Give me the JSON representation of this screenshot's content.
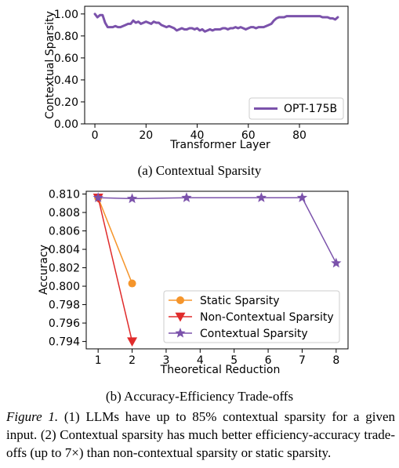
{
  "chart_data": [
    {
      "type": "line",
      "title": "",
      "xlabel": "Transformer Layer",
      "ylabel": "Contextual Sparsity",
      "xlim": [
        -4,
        99
      ],
      "ylim": [
        0,
        1.07
      ],
      "xticks": [
        0,
        20,
        40,
        60,
        80
      ],
      "yticks": [
        0.0,
        0.2,
        0.4,
        0.6,
        0.8,
        1.0
      ],
      "xtick_labels": [
        "0",
        "20",
        "40",
        "60",
        "80"
      ],
      "ytick_labels": [
        "0.00",
        "0.20",
        "0.40",
        "0.60",
        "0.80",
        "1.00"
      ],
      "grid": false,
      "legend_position": "lower-right",
      "series": [
        {
          "name": "OPT-175B",
          "color": "#7b52ab",
          "x": [
            0,
            1,
            2,
            3,
            4,
            5,
            6,
            7,
            8,
            9,
            10,
            11,
            12,
            13,
            14,
            15,
            16,
            17,
            18,
            19,
            20,
            21,
            22,
            23,
            24,
            25,
            26,
            27,
            28,
            29,
            30,
            31,
            32,
            33,
            34,
            35,
            36,
            37,
            38,
            39,
            40,
            41,
            42,
            43,
            44,
            45,
            46,
            47,
            48,
            49,
            50,
            51,
            52,
            53,
            54,
            55,
            56,
            57,
            58,
            59,
            60,
            61,
            62,
            63,
            64,
            65,
            66,
            67,
            68,
            69,
            70,
            71,
            72,
            73,
            74,
            75,
            76,
            77,
            78,
            79,
            80,
            81,
            82,
            83,
            84,
            85,
            86,
            87,
            88,
            89,
            90,
            91,
            92,
            93,
            94,
            95
          ],
          "y": [
            1.0,
            0.97,
            0.99,
            0.99,
            0.92,
            0.88,
            0.88,
            0.88,
            0.89,
            0.88,
            0.88,
            0.89,
            0.9,
            0.91,
            0.91,
            0.94,
            0.92,
            0.93,
            0.91,
            0.92,
            0.93,
            0.92,
            0.91,
            0.93,
            0.92,
            0.92,
            0.9,
            0.89,
            0.88,
            0.89,
            0.88,
            0.87,
            0.85,
            0.86,
            0.87,
            0.86,
            0.86,
            0.87,
            0.87,
            0.86,
            0.87,
            0.85,
            0.86,
            0.84,
            0.85,
            0.86,
            0.85,
            0.86,
            0.86,
            0.86,
            0.87,
            0.87,
            0.86,
            0.87,
            0.87,
            0.88,
            0.87,
            0.88,
            0.87,
            0.86,
            0.87,
            0.88,
            0.88,
            0.87,
            0.88,
            0.88,
            0.88,
            0.89,
            0.9,
            0.91,
            0.94,
            0.96,
            0.97,
            0.97,
            0.97,
            0.98,
            0.98,
            0.98,
            0.98,
            0.98,
            0.98,
            0.98,
            0.98,
            0.98,
            0.98,
            0.98,
            0.98,
            0.98,
            0.98,
            0.97,
            0.97,
            0.97,
            0.96,
            0.96,
            0.95,
            0.97
          ]
        }
      ]
    },
    {
      "type": "line",
      "title": "",
      "xlabel": "Theoretical Reduction",
      "ylabel": "Accuracy",
      "xlim": [
        0.65,
        8.35
      ],
      "ylim": [
        0.7932,
        0.8103
      ],
      "xticks": [
        1,
        2,
        3,
        4,
        5,
        6,
        7,
        8
      ],
      "yticks": [
        0.794,
        0.796,
        0.798,
        0.8,
        0.802,
        0.804,
        0.806,
        0.808,
        0.81
      ],
      "xtick_labels": [
        "1",
        "2",
        "3",
        "4",
        "5",
        "6",
        "7",
        "8"
      ],
      "ytick_labels": [
        "0.794",
        "0.796",
        "0.798",
        "0.800",
        "0.802",
        "0.804",
        "0.806",
        "0.808",
        "0.810"
      ],
      "grid": false,
      "legend_position": "lower-right",
      "series": [
        {
          "name": "Static Sparsity",
          "color": "#f5952b",
          "marker": "circle",
          "x": [
            1,
            2
          ],
          "y": [
            0.8096,
            0.8003
          ]
        },
        {
          "name": "Non-Contextual Sparsity",
          "color": "#e02b2b",
          "marker": "triangle-down",
          "x": [
            1,
            2
          ],
          "y": [
            0.8096,
            0.794
          ]
        },
        {
          "name": "Contextual Sparsity",
          "color": "#7b52ab",
          "marker": "star",
          "x": [
            1,
            2,
            3.6,
            5.8,
            7,
            8
          ],
          "y": [
            0.8096,
            0.8095,
            0.8096,
            0.8096,
            0.8096,
            0.8025
          ]
        }
      ]
    }
  ],
  "captions": {
    "sub_a": "(a) Contextual Sparsity",
    "sub_b": "(b) Accuracy-Efficiency Trade-offs"
  },
  "figure_caption": {
    "label": "Figure 1.",
    "text_1": " (1) LLMs have up to 85% contextual sparsity for a given input. (2) Contextual sparsity has much better efficiency-accuracy trade-offs (up to 7",
    "times": "×",
    "text_2": ") than non-contextual sparsity or static sparsity."
  }
}
